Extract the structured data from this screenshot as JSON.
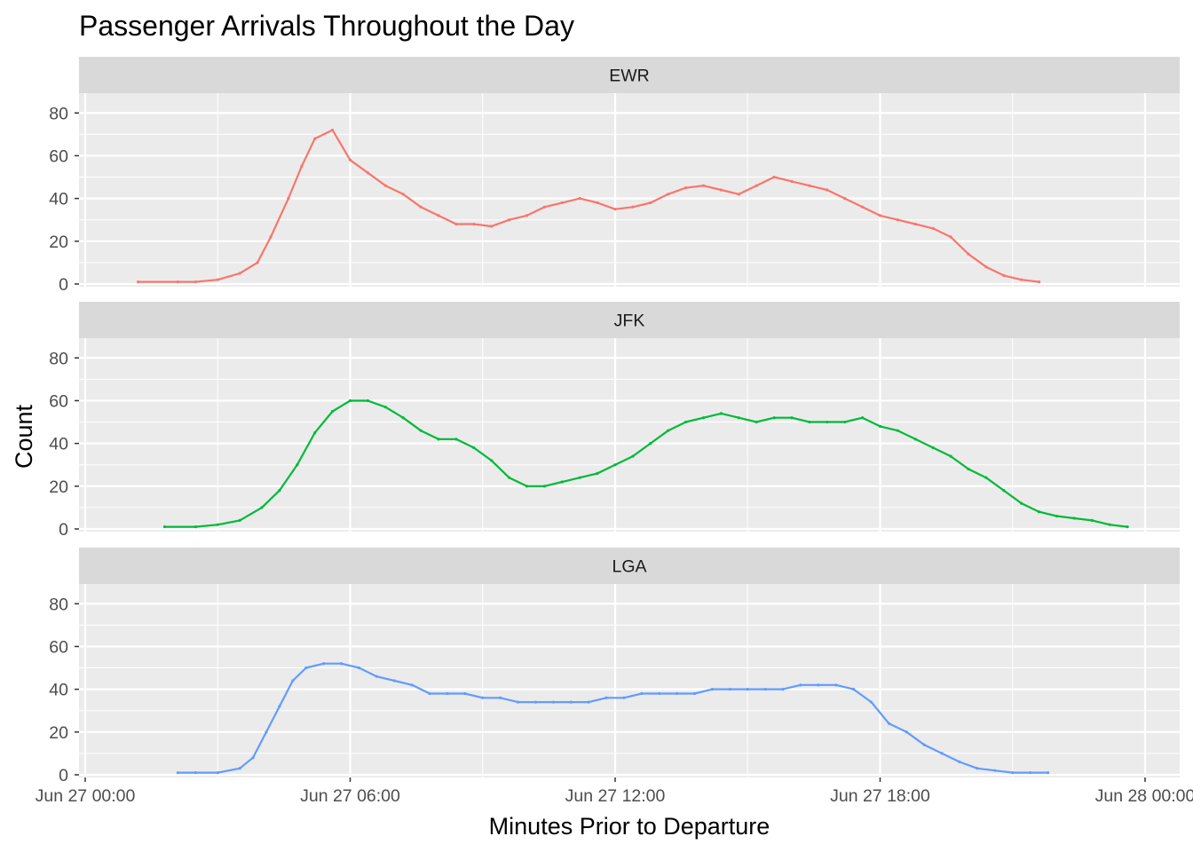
{
  "chart_data": {
    "type": "line",
    "title": "Passenger Arrivals Throughout the Day",
    "xlabel": "Minutes Prior to Departure",
    "ylabel": "Count",
    "xlim": [
      "Jun 27 00:00",
      "Jun 28 00:00"
    ],
    "x_ticks": [
      "Jun 27 00:00",
      "Jun 27 06:00",
      "Jun 27 12:00",
      "Jun 27 18:00",
      "Jun 28 00:00"
    ],
    "ylim": [
      0,
      88
    ],
    "y_ticks": [
      0,
      20,
      40,
      60,
      80
    ],
    "grid": true,
    "legend": "none",
    "x_unit_note": "x values are times of day on Jun 27 in hours (0 = 00:00)",
    "facets": [
      {
        "label": "EWR",
        "color": "#F8766D",
        "x": [
          1.2,
          2.1,
          2.5,
          3.0,
          3.5,
          3.9,
          4.2,
          4.6,
          4.9,
          5.2,
          5.6,
          6.0,
          6.4,
          6.8,
          7.2,
          7.6,
          8.0,
          8.4,
          8.8,
          9.2,
          9.6,
          10.0,
          10.4,
          10.8,
          11.2,
          11.6,
          12.0,
          12.4,
          12.8,
          13.2,
          13.6,
          14.0,
          14.4,
          14.8,
          15.2,
          15.6,
          16.0,
          16.4,
          16.8,
          17.2,
          17.6,
          18.0,
          18.4,
          18.8,
          19.2,
          19.6,
          20.0,
          20.4,
          20.8,
          21.2,
          21.6
        ],
        "y": [
          1,
          1,
          1,
          2,
          5,
          10,
          22,
          40,
          55,
          68,
          72,
          58,
          52,
          46,
          42,
          36,
          32,
          28,
          28,
          27,
          30,
          32,
          36,
          38,
          40,
          38,
          35,
          36,
          38,
          42,
          45,
          46,
          44,
          42,
          46,
          50,
          48,
          46,
          44,
          40,
          36,
          32,
          30,
          28,
          26,
          22,
          14,
          8,
          4,
          2,
          1
        ]
      },
      {
        "label": "JFK",
        "color": "#00BA38",
        "x": [
          1.8,
          2.5,
          3.0,
          3.5,
          4.0,
          4.4,
          4.8,
          5.2,
          5.6,
          6.0,
          6.4,
          6.8,
          7.2,
          7.6,
          8.0,
          8.4,
          8.8,
          9.2,
          9.6,
          10.0,
          10.4,
          10.8,
          11.2,
          11.6,
          12.0,
          12.4,
          12.8,
          13.2,
          13.6,
          14.0,
          14.4,
          14.8,
          15.2,
          15.6,
          16.0,
          16.4,
          16.8,
          17.2,
          17.6,
          18.0,
          18.4,
          18.8,
          19.2,
          19.6,
          20.0,
          20.4,
          20.8,
          21.2,
          21.6,
          22.0,
          22.4,
          22.8,
          23.2,
          23.6
        ],
        "y": [
          1,
          1,
          2,
          4,
          10,
          18,
          30,
          45,
          55,
          60,
          60,
          57,
          52,
          46,
          42,
          42,
          38,
          32,
          24,
          20,
          20,
          22,
          24,
          26,
          30,
          34,
          40,
          46,
          50,
          52,
          54,
          52,
          50,
          52,
          52,
          50,
          50,
          50,
          52,
          48,
          46,
          42,
          38,
          34,
          28,
          24,
          18,
          12,
          8,
          6,
          5,
          4,
          2,
          1
        ]
      },
      {
        "label": "LGA",
        "color": "#619CFF",
        "x": [
          2.1,
          2.5,
          3.0,
          3.5,
          3.8,
          4.1,
          4.4,
          4.7,
          5.0,
          5.4,
          5.8,
          6.2,
          6.6,
          7.0,
          7.4,
          7.8,
          8.2,
          8.6,
          9.0,
          9.4,
          9.8,
          10.2,
          10.6,
          11.0,
          11.4,
          11.8,
          12.2,
          12.6,
          13.0,
          13.4,
          13.8,
          14.2,
          14.6,
          15.0,
          15.4,
          15.8,
          16.2,
          16.6,
          17.0,
          17.4,
          17.8,
          18.2,
          18.6,
          19.0,
          19.4,
          19.8,
          20.2,
          20.6,
          21.0,
          21.4,
          21.8
        ],
        "y": [
          1,
          1,
          1,
          3,
          8,
          20,
          32,
          44,
          50,
          52,
          52,
          50,
          46,
          44,
          42,
          38,
          38,
          38,
          36,
          36,
          34,
          34,
          34,
          34,
          34,
          36,
          36,
          38,
          38,
          38,
          38,
          40,
          40,
          40,
          40,
          40,
          42,
          42,
          42,
          40,
          34,
          24,
          20,
          14,
          10,
          6,
          3,
          2,
          1,
          1,
          1
        ]
      }
    ]
  }
}
